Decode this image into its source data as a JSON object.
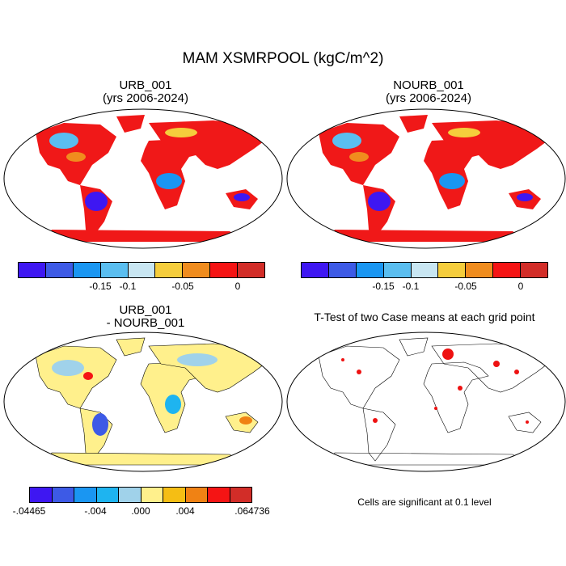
{
  "figure_title": "MAM XSMRPOOL (kgC/m^2)",
  "panels": [
    {
      "title": "URB_001\n(yrs 2006-2024)"
    },
    {
      "title": "NOURB_001\n(yrs 2006-2024)"
    },
    {
      "title": "URB_001\n - NOURB_001"
    },
    {
      "title": "T-Test of two Case means at each grid point"
    }
  ],
  "colorbar_abs": {
    "colors": [
      "#3e17f2",
      "#3d5ae6",
      "#1a96f2",
      "#5abef0",
      "#c8e6f2",
      "#f5cd3c",
      "#f08c1e",
      "#f51414",
      "#d22d28"
    ],
    "tick_labels": [
      "-0.15",
      "-0.1",
      "-0.05",
      "0"
    ]
  },
  "colorbar_diff": {
    "colors": [
      "#3e17f2",
      "#3d5ae6",
      "#1a96f2",
      "#1eb4f0",
      "#a0d2ea",
      "#fff08c",
      "#f5be14",
      "#f08214",
      "#f51414",
      "#d22d28"
    ],
    "tick_labels": [
      ".04465",
      ".004",
      ".000",
      ".004",
      ".064736"
    ]
  },
  "footnote": "Cells are significant at 0.1 level",
  "land_fill": {
    "urb": "#f01818",
    "diff": "#fff08c",
    "ttest_sig": "#ee1111"
  }
}
